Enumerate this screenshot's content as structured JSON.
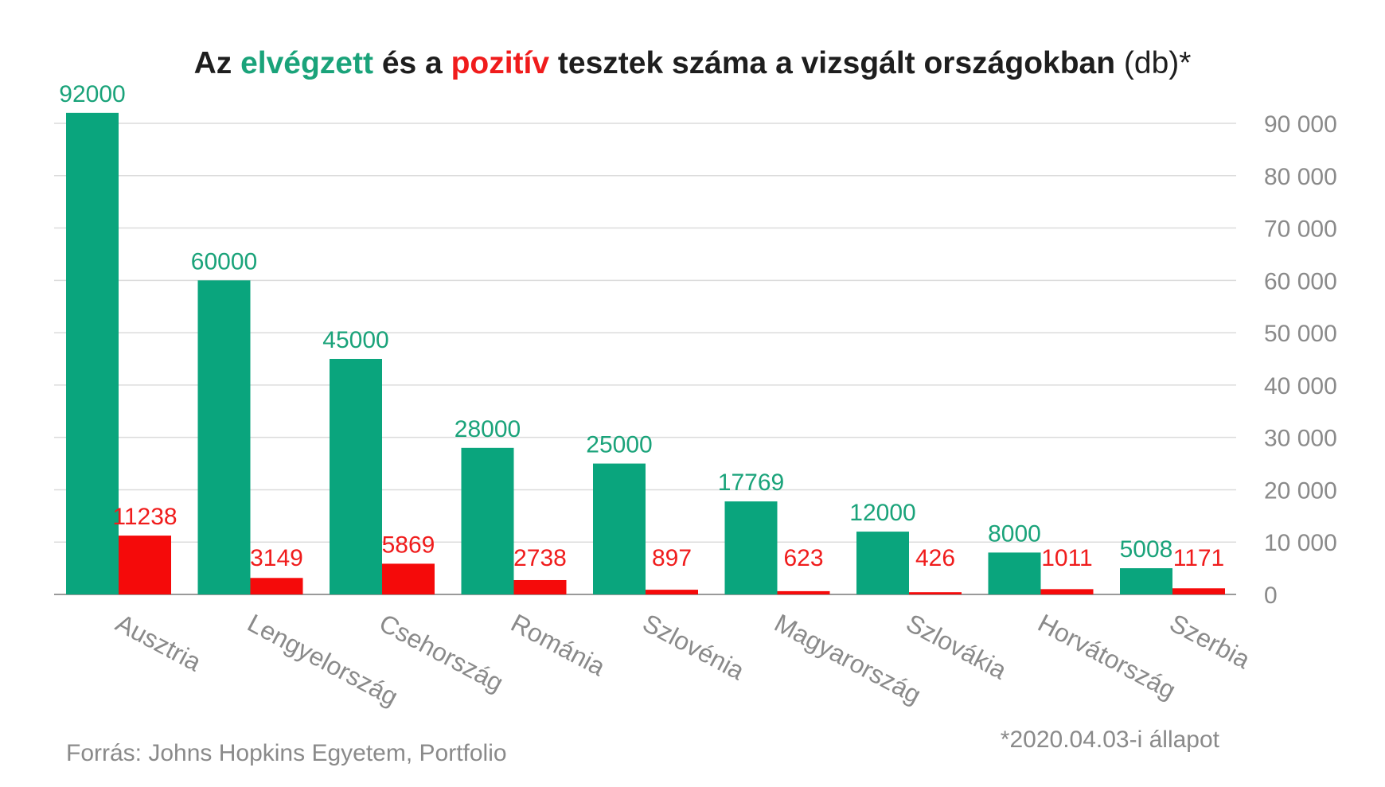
{
  "title": {
    "part1": "Az",
    "part2": "elvégzett",
    "part3": "és a",
    "part4": "pozitív",
    "part5": "tesztek száma a vizsgált országokban",
    "part6": "(db)*"
  },
  "footer": {
    "source": "Forrás: Johns Hopkins Egyetem, Portfolio",
    "note": "*2020.04.03-i  állapot"
  },
  "colors": {
    "tested": "#0aa57d",
    "positive": "#f50a0a",
    "tested_label": "#1aa37a",
    "positive_label": "#f01c1c",
    "grid": "#dcdcdc",
    "axis_text": "#8a8a8a"
  },
  "chart_data": {
    "type": "bar",
    "categories": [
      "Ausztria",
      "Lengyelország",
      "Csehország",
      "Románia",
      "Szlovénia",
      "Magyarország",
      "Szlovákia",
      "Horvátország",
      "Szerbia"
    ],
    "series": [
      {
        "values": [
          92000,
          60000,
          45000,
          28000,
          25000,
          17769,
          12000,
          8000,
          5008
        ],
        "labels": [
          "92000",
          "60000",
          "45000",
          "28000",
          "25000",
          "17769",
          "12000",
          "8000",
          "5008"
        ]
      },
      {
        "values": [
          11238,
          3149,
          5869,
          2738,
          897,
          623,
          426,
          1011,
          1171
        ],
        "labels": [
          "11238",
          "3149",
          "5869",
          "2738",
          "897",
          "623",
          "426",
          "1011",
          "1171"
        ]
      }
    ],
    "yticks": [
      0,
      10000,
      20000,
      30000,
      40000,
      50000,
      60000,
      70000,
      80000,
      90000
    ],
    "ytick_labels": [
      "0",
      "10 000",
      "20 000",
      "30 000",
      "40 000",
      "50 000",
      "60 000",
      "70 000",
      "80 000",
      "90 000"
    ],
    "ylim": [
      0,
      92000
    ],
    "y_axis_side": "right",
    "grid": true,
    "legend": "none (series identified by colored words in the title)"
  }
}
